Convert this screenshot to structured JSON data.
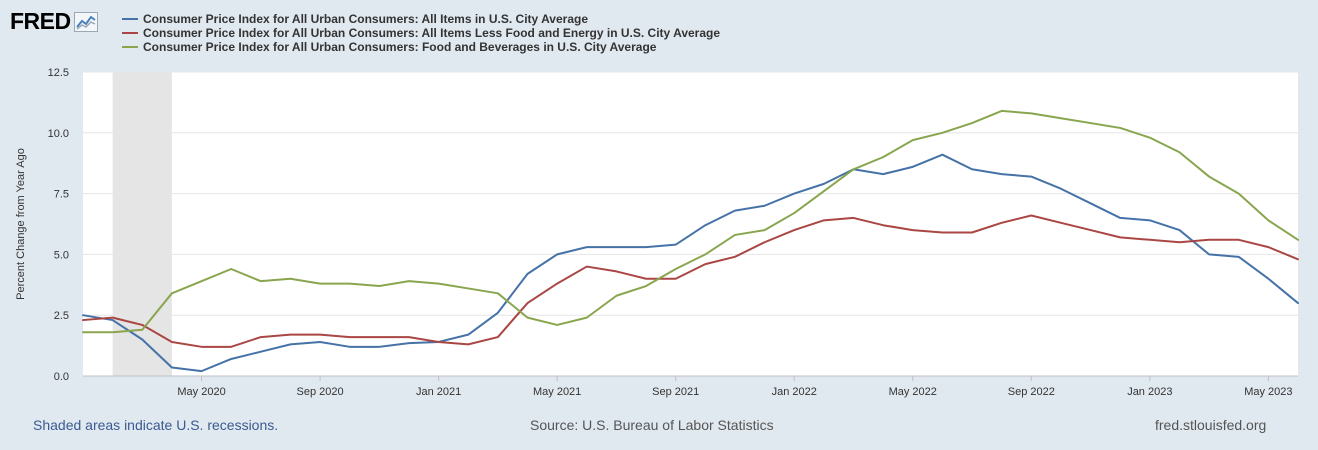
{
  "header": {
    "logo_text": "FRED"
  },
  "footer": {
    "recession_note": "Shaded areas indicate U.S. recessions.",
    "source": "Source: U.S. Bureau of Labor Statistics",
    "site": "fred.stlouisfed.org"
  },
  "chart_data": {
    "type": "line",
    "ylabel": "Percent Change from Year Ago",
    "ylim": [
      0,
      12.5
    ],
    "yticks": [
      "0.0",
      "2.5",
      "5.0",
      "7.5",
      "10.0",
      "12.5"
    ],
    "x_months_index_range": [
      0,
      41
    ],
    "xtick_labels": [
      {
        "label": "May 2020",
        "index": 4
      },
      {
        "label": "Sep 2020",
        "index": 8
      },
      {
        "label": "Jan 2021",
        "index": 12
      },
      {
        "label": "May 2021",
        "index": 16
      },
      {
        "label": "Sep 2021",
        "index": 20
      },
      {
        "label": "Jan 2022",
        "index": 24
      },
      {
        "label": "May 2022",
        "index": 28
      },
      {
        "label": "Sep 2022",
        "index": 32
      },
      {
        "label": "Jan 2023",
        "index": 36
      },
      {
        "label": "May 2023",
        "index": 40
      }
    ],
    "recession": {
      "start_index": 1,
      "end_index": 3
    },
    "series": [
      {
        "name": "Consumer Price Index for All Urban Consumers: All Items in U.S. City Average",
        "color": "#4572a7",
        "values": [
          2.5,
          2.3,
          1.5,
          0.35,
          0.2,
          0.7,
          1.0,
          1.3,
          1.4,
          1.2,
          1.2,
          1.35,
          1.4,
          1.7,
          2.6,
          4.2,
          5.0,
          5.3,
          5.3,
          5.3,
          5.4,
          6.2,
          6.8,
          7.0,
          7.5,
          7.9,
          8.5,
          8.3,
          8.6,
          9.1,
          8.5,
          8.3,
          8.2,
          7.7,
          7.1,
          6.5,
          6.4,
          6.0,
          5.0,
          4.9,
          4.0,
          3.0
        ]
      },
      {
        "name": "Consumer Price Index for All Urban Consumers: All Items Less Food and Energy in U.S. City Average",
        "color": "#aa4643",
        "values": [
          2.3,
          2.4,
          2.1,
          1.4,
          1.2,
          1.2,
          1.6,
          1.7,
          1.7,
          1.6,
          1.6,
          1.6,
          1.4,
          1.3,
          1.6,
          3.0,
          3.8,
          4.5,
          4.3,
          4.0,
          4.0,
          4.6,
          4.9,
          5.5,
          6.0,
          6.4,
          6.5,
          6.2,
          6.0,
          5.9,
          5.9,
          6.3,
          6.6,
          6.3,
          6.0,
          5.7,
          5.6,
          5.5,
          5.6,
          5.6,
          5.3,
          4.8
        ]
      },
      {
        "name": "Consumer Price Index for All Urban Consumers: Food and Beverages in U.S. City Average",
        "color": "#89a54e",
        "values": [
          1.8,
          1.8,
          1.9,
          3.4,
          3.9,
          4.4,
          3.9,
          4.0,
          3.8,
          3.8,
          3.7,
          3.9,
          3.8,
          3.6,
          3.4,
          2.4,
          2.1,
          2.4,
          3.3,
          3.7,
          4.4,
          5.0,
          5.8,
          6.0,
          6.7,
          7.6,
          8.5,
          9.0,
          9.7,
          10.0,
          10.4,
          10.9,
          10.8,
          10.6,
          10.4,
          10.2,
          9.8,
          9.2,
          8.2,
          7.5,
          6.4,
          5.6
        ]
      }
    ]
  }
}
